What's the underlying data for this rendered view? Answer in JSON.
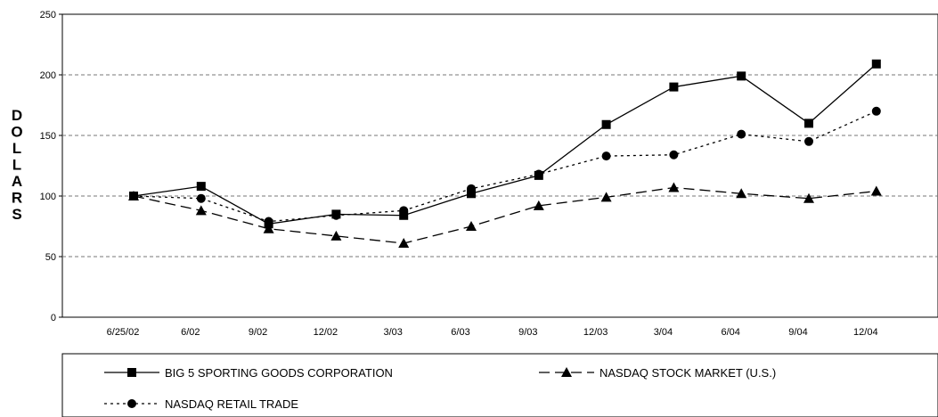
{
  "chart_data": {
    "type": "line",
    "ylabel": "DOLLARS",
    "xlabel": "",
    "title": "",
    "ylim": [
      0,
      250
    ],
    "yticks": [
      "0",
      "50",
      "100",
      "150",
      "200",
      "250"
    ],
    "categories": [
      "6/25/02",
      "6/02",
      "9/02",
      "12/02",
      "3/03",
      "6/03",
      "9/03",
      "12/03",
      "3/04",
      "6/04",
      "9/04",
      "12/04"
    ],
    "grid": "horizontal dashed",
    "legend_position": "bottom",
    "series": [
      {
        "name": "BIG 5 SPORTING GOODS CORPORATION",
        "line": "solid",
        "marker": "square",
        "values": [
          100,
          108,
          77,
          85,
          84,
          102,
          117,
          159,
          190,
          199,
          160,
          209
        ]
      },
      {
        "name": "NASDAQ STOCK MARKET (U.S.)",
        "line": "dashed",
        "marker": "triangle",
        "values": [
          100,
          88,
          73,
          67,
          61,
          75,
          92,
          99,
          107,
          102,
          98,
          104
        ]
      },
      {
        "name": "NASDAQ RETAIL TRADE",
        "line": "dotted",
        "marker": "circle",
        "values": [
          100,
          98,
          79,
          84,
          88,
          106,
          118,
          133,
          134,
          151,
          145,
          170
        ]
      }
    ]
  }
}
